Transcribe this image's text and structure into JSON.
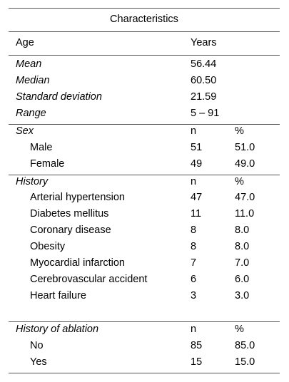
{
  "table": {
    "caption": "Characteristics",
    "header": {
      "label": "Age",
      "unit": "Years"
    },
    "age_rows": [
      {
        "label": "Mean",
        "value": "56.44"
      },
      {
        "label": "Median",
        "value": "60.50"
      },
      {
        "label": "Standard deviation",
        "value": "21.59"
      },
      {
        "label": "Range",
        "value": "5 – 91"
      }
    ],
    "sex": {
      "label": "Sex",
      "n": "n",
      "pct": "%",
      "rows": [
        {
          "label": "Male",
          "n": "51",
          "pct": "51.0"
        },
        {
          "label": "Female",
          "n": "49",
          "pct": "49.0"
        }
      ]
    },
    "history": {
      "label": "History",
      "n": "n",
      "pct": "%",
      "rows": [
        {
          "label": "Arterial hypertension",
          "n": "47",
          "pct": "47.0"
        },
        {
          "label": "Diabetes mellitus",
          "n": "11",
          "pct": "11.0"
        },
        {
          "label": "Coronary disease",
          "n": "8",
          "pct": "8.0"
        },
        {
          "label": "Obesity",
          "n": "8",
          "pct": "8.0"
        },
        {
          "label": "Myocardial infarction",
          "n": "7",
          "pct": "7.0"
        },
        {
          "label": "Cerebrovascular accident",
          "n": "6",
          "pct": "6.0"
        },
        {
          "label": "Heart failure",
          "n": "3",
          "pct": "3.0"
        }
      ]
    },
    "ablation": {
      "label": "History of ablation",
      "n": "n",
      "pct": "%",
      "rows": [
        {
          "label": "No",
          "n": "85",
          "pct": "85.0"
        },
        {
          "label": "Yes",
          "n": "15",
          "pct": "15.0"
        }
      ]
    }
  }
}
